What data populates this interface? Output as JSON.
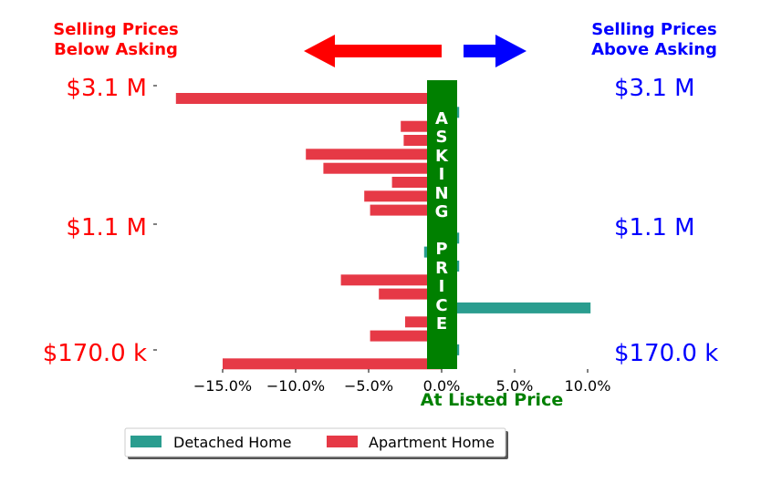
{
  "chart_data": {
    "type": "bar",
    "orientation": "horizontal",
    "headers": {
      "left": [
        "Selling Prices",
        "Below Asking"
      ],
      "right": [
        "Selling Prices",
        "Above Asking"
      ]
    },
    "price_labels_left": [
      "$3.1 M",
      "$1.1 M",
      "$170.0 k"
    ],
    "price_labels_right": [
      "$3.1 M",
      "$1.1 M",
      "$170.0 k"
    ],
    "center_letters": [
      "A",
      "S",
      "K",
      "I",
      "N",
      "G",
      "P",
      "R",
      "I",
      "C",
      "E"
    ],
    "xlabel": "At Listed Price",
    "xlim": [
      -19,
      11
    ],
    "xticks": [
      -15,
      -10,
      -5,
      0,
      5,
      10
    ],
    "xtick_labels": [
      "−15.0%",
      "−10.0%",
      "−5.0%",
      "0.0%",
      "5.0%",
      "10.0%"
    ],
    "series": [
      {
        "name": "Detached Home",
        "color": "#2a9d8f",
        "values": [
          0,
          1.2,
          0,
          0,
          0,
          0,
          0,
          0,
          0,
          0,
          1.2,
          -1.2,
          1.2,
          0,
          0,
          10.2,
          0,
          0,
          1.2,
          0
        ]
      },
      {
        "name": "Apartment Home",
        "color": "#e63946",
        "values": [
          -18.2,
          0,
          -2.8,
          -2.6,
          -9.3,
          -8.1,
          -3.4,
          -5.3,
          -4.9,
          0,
          0,
          0,
          0,
          -6.9,
          -4.3,
          0,
          -2.5,
          -4.9,
          0,
          -15.0
        ]
      }
    ],
    "legend_position": "bottom-center",
    "colors": {
      "left_header": "#ff0000",
      "right_header": "#0000ff",
      "left_arrow": "#ff0000",
      "right_arrow": "#0000ff",
      "asking_band": "#008000",
      "xlabel": "#008000"
    }
  }
}
